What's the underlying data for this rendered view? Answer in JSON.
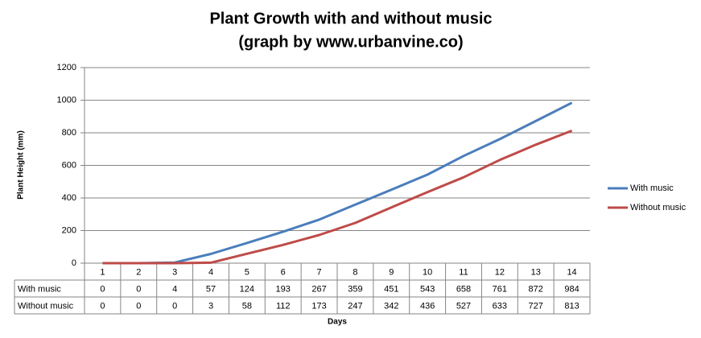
{
  "chart_data": {
    "type": "line",
    "title": "Plant Growth with and without music",
    "subtitle": "(graph by www.urbanvine.co)",
    "x_label": "Days",
    "y_label": "Plant Height (mm)",
    "categories": [
      "1",
      "2",
      "3",
      "4",
      "5",
      "6",
      "7",
      "8",
      "9",
      "10",
      "11",
      "12",
      "13",
      "14"
    ],
    "series": [
      {
        "name": "With music",
        "color": "#4a7ebb",
        "values": [
          0,
          0,
          4,
          57,
          124,
          193,
          267,
          359,
          451,
          543,
          658,
          761,
          872,
          984
        ]
      },
      {
        "name": "Without music",
        "color": "#be4b48",
        "values": [
          0,
          0,
          0,
          3,
          58,
          112,
          173,
          247,
          342,
          436,
          527,
          633,
          727,
          813
        ]
      }
    ],
    "ylim": [
      0,
      1200
    ],
    "yticks": [
      0,
      200,
      400,
      600,
      800,
      1000,
      1200
    ],
    "grid": true,
    "legend": "right",
    "data_table": true
  }
}
